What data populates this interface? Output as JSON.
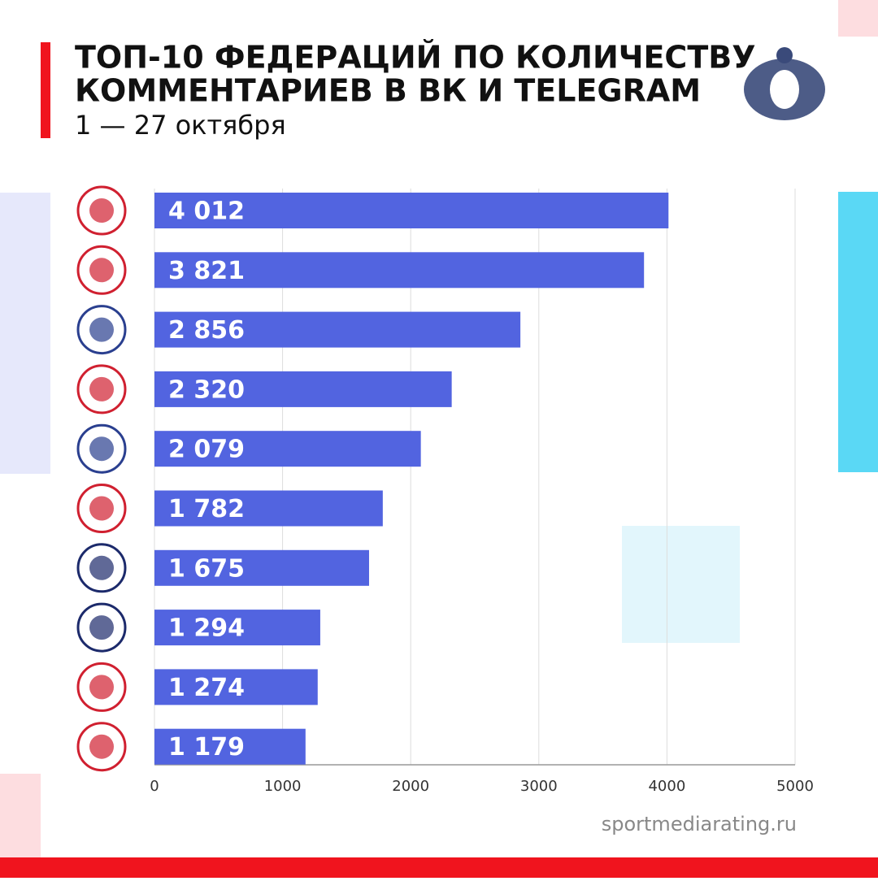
{
  "chart_data": {
    "type": "bar",
    "orientation": "horizontal",
    "title": [
      "ТОП-10 ФЕДЕРАЦИЙ ПО КОЛИЧЕСТВУ",
      "КОММЕНТАРИЕВ В ВК И TELEGRAM"
    ],
    "subtitle": "1 — 27 октября",
    "values": [
      4012,
      3821,
      2856,
      2320,
      2079,
      1782,
      1675,
      1294,
      1274,
      1179
    ],
    "value_labels": [
      "4 012",
      "3 821",
      "2 856",
      "2 320",
      "2 079",
      "1 782",
      "1 675",
      "1 294",
      "1 274",
      "1 179"
    ],
    "color": "#5264e0",
    "xlim": [
      0,
      5000
    ],
    "xticks": [
      0,
      1000,
      2000,
      3000,
      4000,
      5000
    ],
    "grid": true,
    "source": "sportmediarating.ru"
  }
}
